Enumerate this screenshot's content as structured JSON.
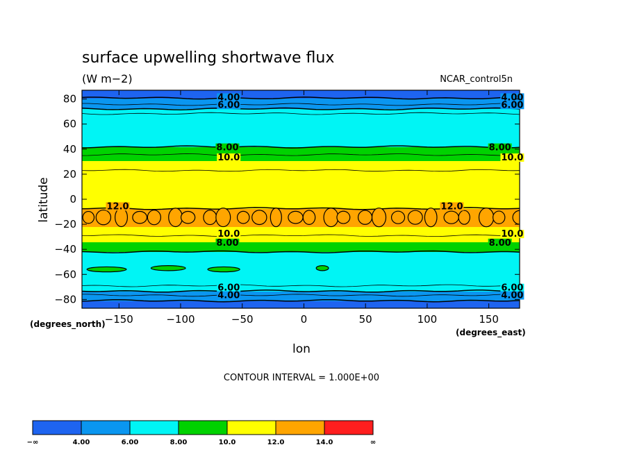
{
  "chart_data": {
    "type": "heatmap",
    "title": "surface upwelling shortwave flux",
    "units": "(W m−2)",
    "dataset": "NCAR_control5n",
    "xlabel": "lon",
    "ylabel": "latitude",
    "x_unit_note": "(degrees_east)",
    "y_unit_note": "(degrees_north)",
    "xlim": [
      -180,
      175
    ],
    "ylim": [
      -87,
      87
    ],
    "x_ticks": [
      -150,
      -100,
      -50,
      0,
      50,
      100,
      150
    ],
    "x_tick_labels": [
      "−150",
      "−100",
      "−50",
      "0",
      "50",
      "100",
      "150"
    ],
    "y_ticks": [
      80,
      60,
      40,
      20,
      0,
      -20,
      -40,
      -60,
      -80
    ],
    "y_tick_labels": [
      "80",
      "60",
      "40",
      "20",
      "0",
      "−20",
      "−40",
      "−60",
      "−80"
    ],
    "contour_interval_text": "CONTOUR INTERVAL = 1.000E+00",
    "zonal_profile": {
      "lat": [
        -87,
        -82,
        -78,
        -75,
        -72,
        -68,
        -64,
        -60,
        -55,
        -50,
        -45,
        -40,
        -37,
        -34,
        -30,
        -27,
        -22,
        -17,
        -12,
        -8,
        -5,
        -2,
        0,
        5,
        10,
        16,
        22,
        25,
        28,
        31,
        33,
        36,
        40,
        43,
        46,
        52,
        58,
        64,
        68,
        71,
        74,
        77,
        82,
        87
      ],
      "value": [
        3.0,
        3.8,
        4.6,
        5.5,
        6.4,
        7.2,
        7.8,
        7.4,
        7.1,
        7.2,
        7.7,
        8.2,
        9.0,
        10.0,
        10.8,
        11.4,
        12.0,
        12.5,
        12.6,
        12.1,
        11.6,
        11.5,
        11.4,
        11.5,
        11.6,
        11.4,
        11.1,
        10.8,
        10.3,
        10.0,
        9.6,
        8.9,
        8.3,
        7.8,
        7.3,
        7.1,
        7.4,
        7.7,
        7.1,
        6.3,
        5.5,
        4.6,
        3.8,
        3.0
      ]
    },
    "features": [
      {
        "level": "12-14",
        "lat_range": [
          -22,
          -7
        ],
        "note": "broken band of high-flux patches across the southern subtropics"
      },
      {
        "level": "8-10",
        "lat_range": [
          -62,
          -48
        ],
        "note": "isolated patches in the Southern Ocean band"
      }
    ],
    "contour_labels": [
      {
        "text": "4.00",
        "lon": -70,
        "lat": 79
      },
      {
        "text": "6.00",
        "lon": -70,
        "lat": 73
      },
      {
        "text": "8.00",
        "lon": -71,
        "lat": 39
      },
      {
        "text": "10.0",
        "lon": -70,
        "lat": 31
      },
      {
        "text": "12.0",
        "lon": -160,
        "lat": -8
      },
      {
        "text": "10.0",
        "lon": -70,
        "lat": -30
      },
      {
        "text": "8.00",
        "lon": -71,
        "lat": -37
      },
      {
        "text": "6.00",
        "lon": -70,
        "lat": -73
      },
      {
        "text": "4.00",
        "lon": -70,
        "lat": -79
      },
      {
        "text": "4.00",
        "lon": 160,
        "lat": 79
      },
      {
        "text": "6.00",
        "lon": 160,
        "lat": 73
      },
      {
        "text": "8.00",
        "lon": 150,
        "lat": 39
      },
      {
        "text": "10.0",
        "lon": 160,
        "lat": 31
      },
      {
        "text": "12.0",
        "lon": 111,
        "lat": -8
      },
      {
        "text": "10.0",
        "lon": 160,
        "lat": -30
      },
      {
        "text": "8.00",
        "lon": 150,
        "lat": -37
      },
      {
        "text": "6.00",
        "lon": 160,
        "lat": -73
      },
      {
        "text": "4.00",
        "lon": 160,
        "lat": -79
      }
    ],
    "colorbar": {
      "labels": [
        "−∞",
        "4.00",
        "6.00",
        "8.00",
        "10.0",
        "12.0",
        "14.0",
        "∞"
      ],
      "colors": [
        "#1e64f0",
        "#0a96f0",
        "#00f5f5",
        "#00d200",
        "#ffff00",
        "#ffa500",
        "#ff1e1e"
      ]
    },
    "grid": false
  }
}
